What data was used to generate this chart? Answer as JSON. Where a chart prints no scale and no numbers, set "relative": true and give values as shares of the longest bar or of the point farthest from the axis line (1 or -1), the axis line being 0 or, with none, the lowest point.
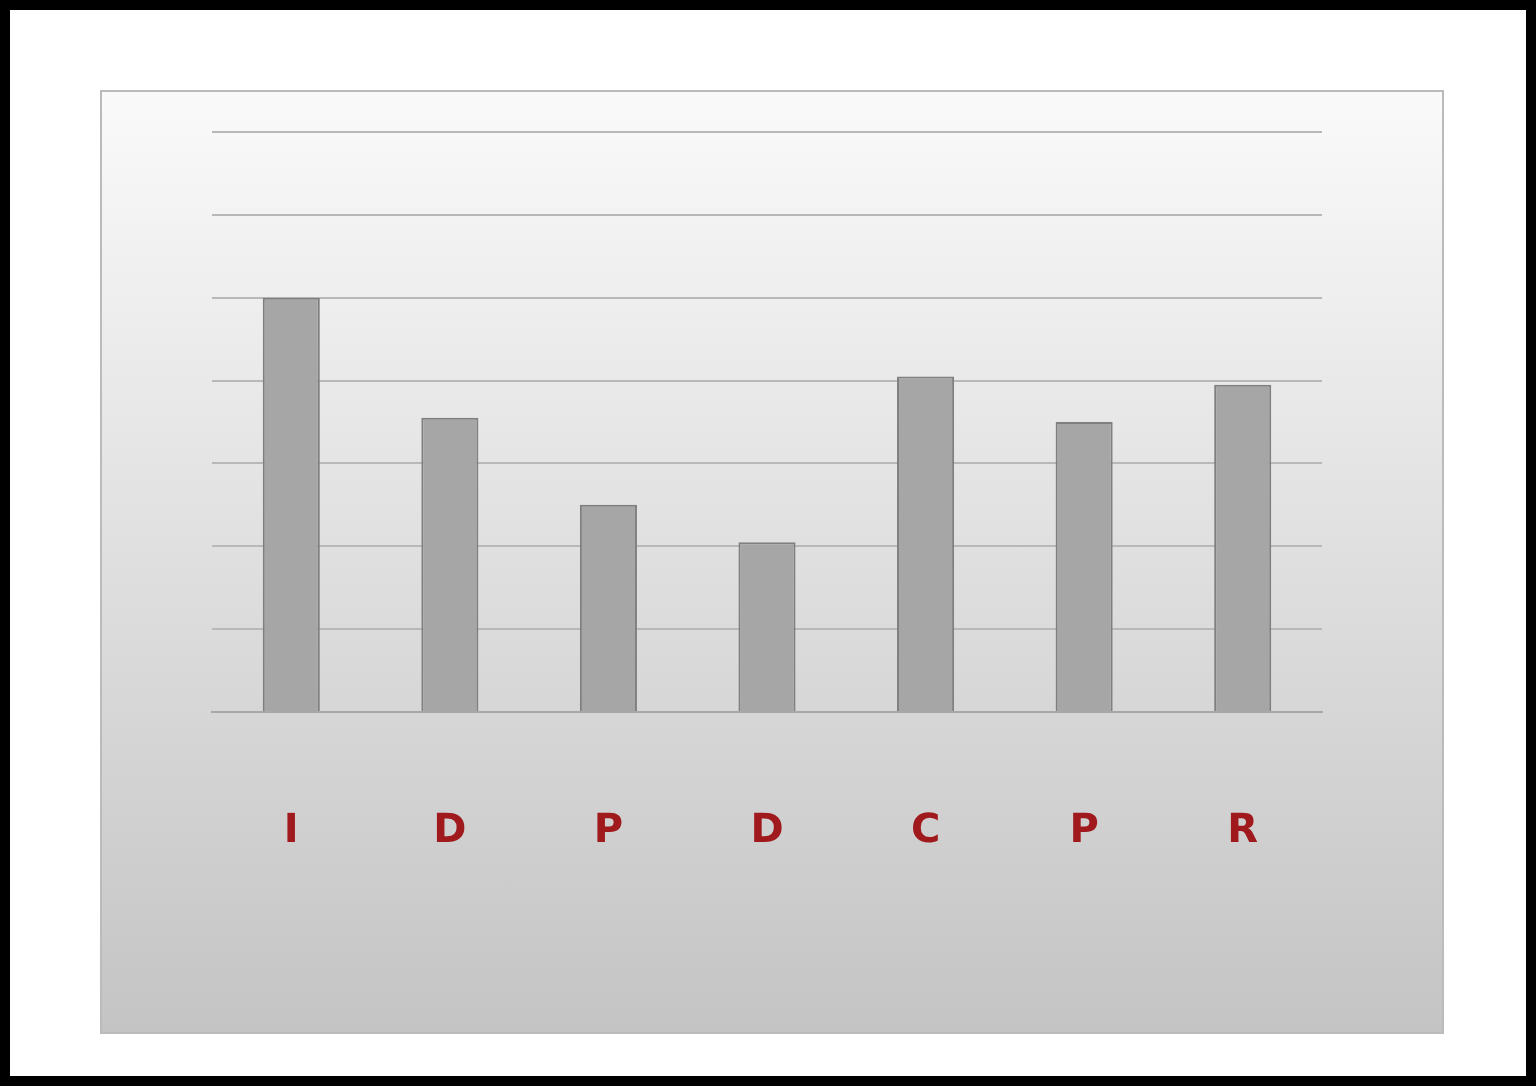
{
  "chart_data": {
    "type": "bar",
    "relative": true,
    "categories": [
      "I",
      "D",
      "P",
      "D",
      "C",
      "P",
      "R"
    ],
    "values": [
      1,
      0.71,
      0.5,
      0.41,
      0.81,
      0.7,
      0.79
    ],
    "color": "#a6a6a6",
    "grid": "y",
    "legend": false
  }
}
